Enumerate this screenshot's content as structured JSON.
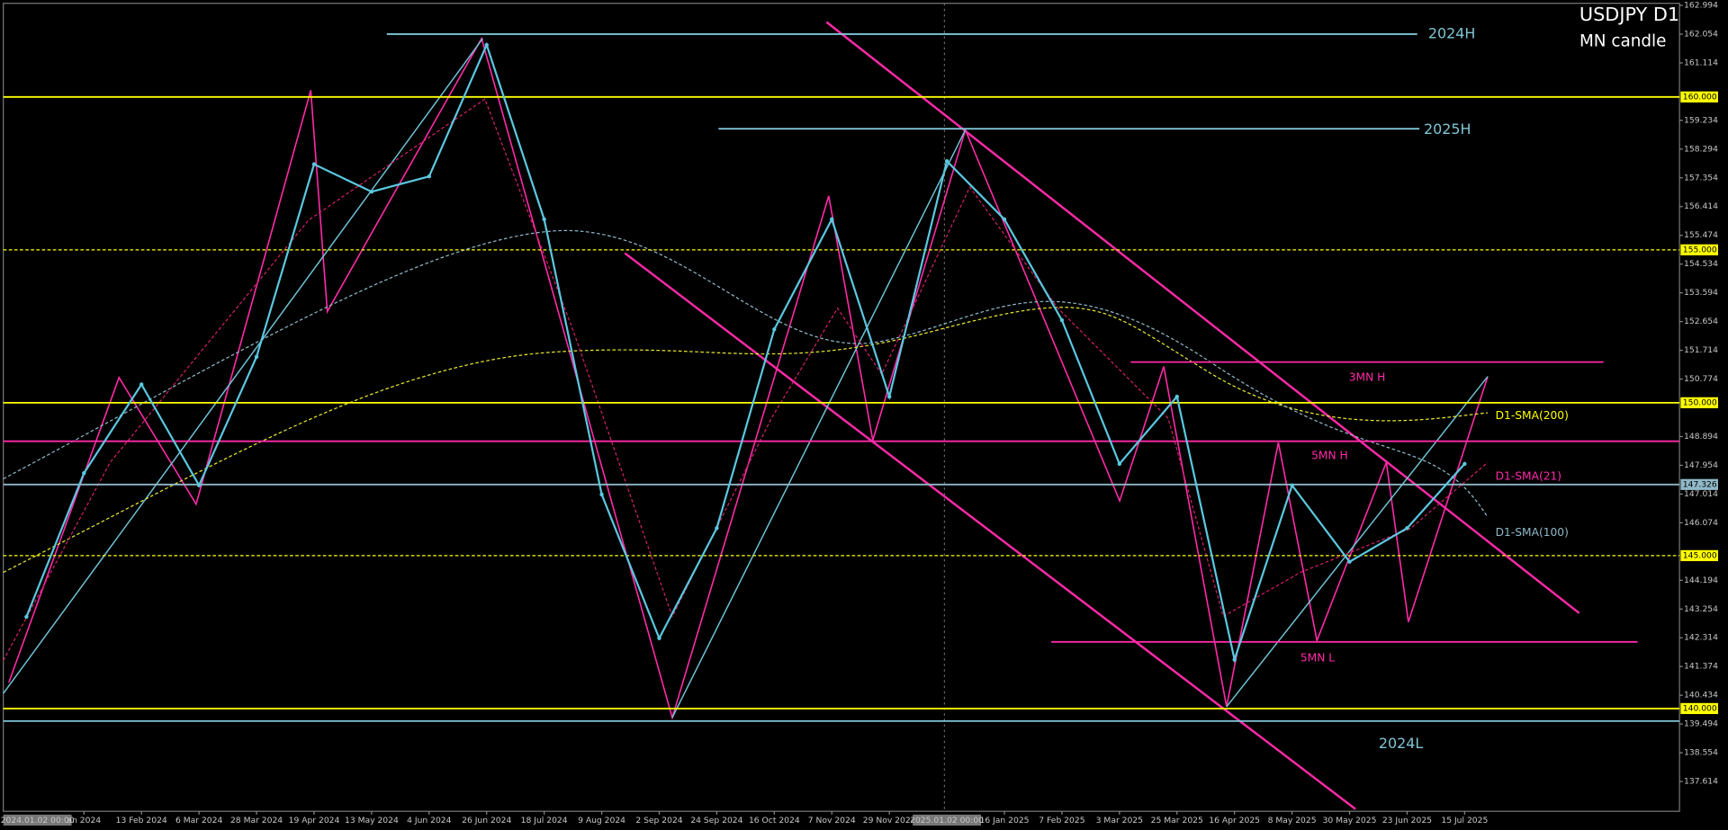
{
  "chart_data": {
    "type": "line",
    "title": "USDJPY D1",
    "subtitle": "MN candle",
    "categories": [
      "2024.01.02 00:00",
      "an 2024",
      "13 Feb 2024",
      "6 Mar 2024",
      "28 Mar 2024",
      "19 Apr 2024",
      "13 May 2024",
      "4 Jun 2024",
      "26 Jun 2024",
      "18 Jul 2024",
      "9 Aug 2024",
      "2 Sep 2024",
      "24 Sep 2024",
      "16 Oct 2024",
      "7 Nov 2024",
      "29 Nov 2024",
      "2025.01.02 00:00",
      "16 Jan 2025",
      "7 Feb 2025",
      "3 Mar 2025",
      "25 Mar 2025",
      "16 Apr 2025",
      "8 May 2025",
      "30 May 2025",
      "23 Jun 2025",
      "15 Jul 2025"
    ],
    "values": [
      143.0,
      147.7,
      150.6,
      147.3,
      151.5,
      157.8,
      156.9,
      157.4,
      161.7,
      156.0,
      147.0,
      142.3,
      145.9,
      152.4,
      156.0,
      150.2,
      157.9,
      156.0,
      152.7,
      148.0,
      150.2,
      141.6,
      147.3,
      144.8,
      145.9,
      148.0
    ],
    "color": "#5bc8e0",
    "ylim": [
      136.64,
      163.17
    ],
    "yticks": [
      162.994,
      162.054,
      161.114,
      159.234,
      158.294,
      157.354,
      156.414,
      155.474,
      154.534,
      153.594,
      152.654,
      151.714,
      150.774,
      148.894,
      147.954,
      147.014,
      146.074,
      144.194,
      143.254,
      142.314,
      141.374,
      140.434,
      139.494,
      138.554,
      137.614
    ],
    "price_levels": [
      {
        "value": 160,
        "label": "160.000",
        "color": "#ffff00",
        "dashed": false
      },
      {
        "value": 155,
        "label": "155.000",
        "color": "#ffff00",
        "dashed": true
      },
      {
        "value": 150,
        "label": "150.000",
        "color": "#ffff00",
        "dashed": false
      },
      {
        "value": 147.326,
        "label": "147.326",
        "color": "#8fb8c8",
        "dashed": false
      },
      {
        "value": 145,
        "label": "145.000",
        "color": "#ffff00",
        "dashed": true
      },
      {
        "value": 140,
        "label": "140.000",
        "color": "#ffff00",
        "dashed": false
      }
    ],
    "annotations": [
      {
        "text": "2024H",
        "value": 162.054,
        "color": "#7fc4d4"
      },
      {
        "text": "2025H",
        "value": 158.96,
        "color": "#7fc4d4"
      },
      {
        "text": "2024L",
        "value": 139.59,
        "color": "#7fc4d4"
      },
      {
        "text": "3MN H",
        "value": 151.33,
        "color": "#ff2aa8"
      },
      {
        "text": "5MN H",
        "value": 148.74,
        "color": "#ff2aa8"
      },
      {
        "text": "5MN L",
        "value": 142.18,
        "color": "#ff2aa8"
      },
      {
        "text": "D1-SMA(200)",
        "color": "#ffff00"
      },
      {
        "text": "D1-SMA(21)",
        "color": "#ff2aa8"
      },
      {
        "text": "D1-SMA(100)",
        "color": "#8fb8c8"
      }
    ]
  }
}
